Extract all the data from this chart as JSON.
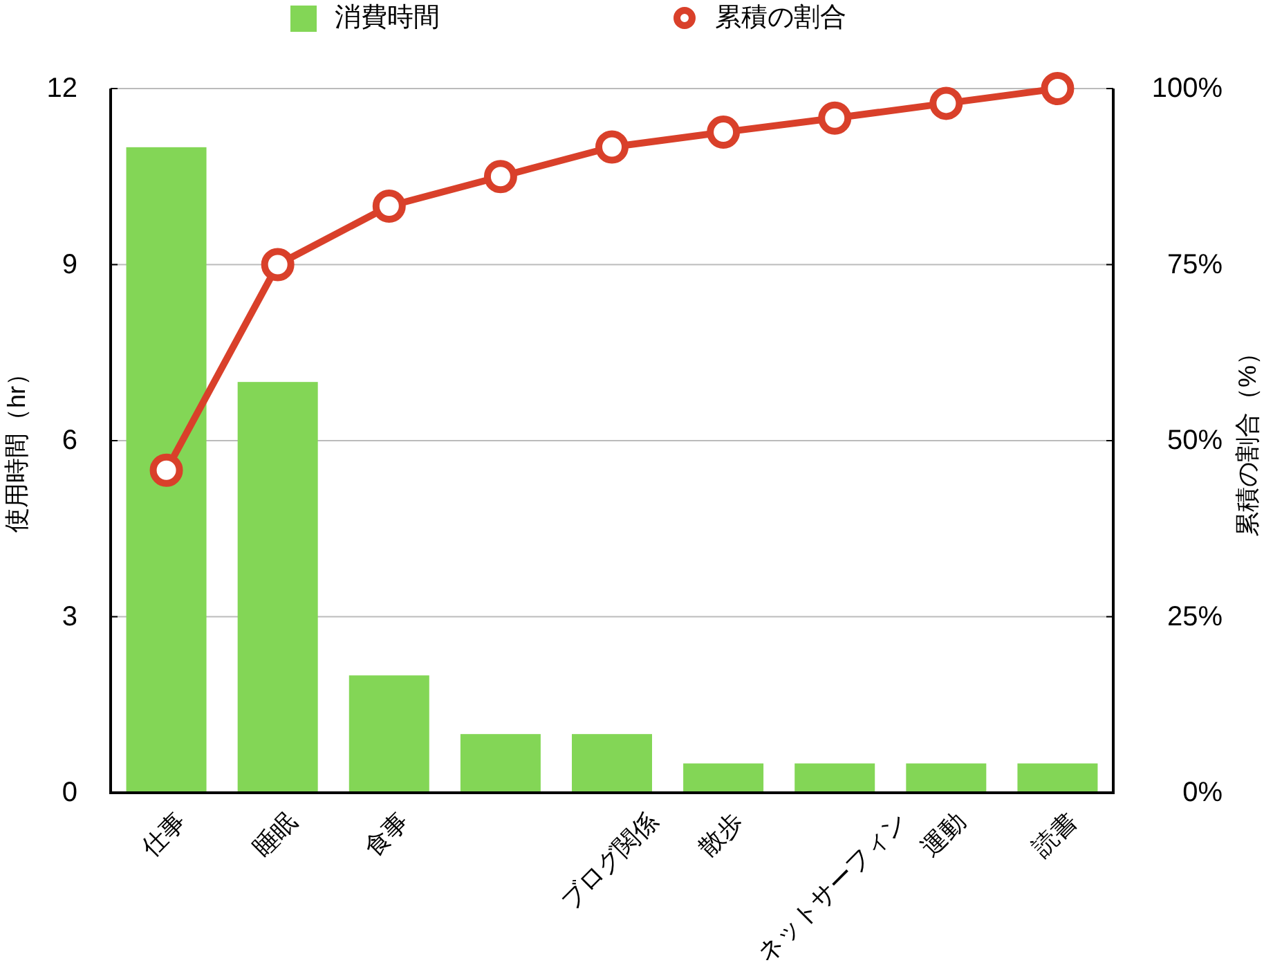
{
  "chart_data": {
    "type": "bar",
    "categories": [
      "仕事",
      "睡眠",
      "食事",
      null,
      "ブログ関係",
      "散歩",
      "ネットサーフィン",
      "運動",
      "読書"
    ],
    "series": [
      {
        "name": "消費時間",
        "color": "#83d656",
        "values": [
          11,
          7,
          2,
          1,
          1,
          0.5,
          0.5,
          0.5,
          0.5
        ]
      },
      {
        "name": "累積の割合",
        "type": "line",
        "axis": "y2",
        "marker": "circle",
        "color": "#d9402a",
        "values": [
          45.8,
          75,
          83.3,
          87.5,
          91.7,
          93.8,
          95.8,
          97.9,
          100
        ]
      }
    ],
    "ylim": [
      0,
      12
    ],
    "yticks": [
      0,
      3,
      6,
      9,
      12
    ],
    "y2lim": [
      0,
      100
    ],
    "y2ticks": [
      {
        "value": 0,
        "label": "0%"
      },
      {
        "value": 25,
        "label": "25%"
      },
      {
        "value": 50,
        "label": "50%"
      },
      {
        "value": 75,
        "label": "75%"
      },
      {
        "value": 100,
        "label": "100%"
      }
    ],
    "ylabel": "使用時間（hr）",
    "y2label": "累積の割合（%）",
    "grid": "y",
    "legend": "top"
  }
}
